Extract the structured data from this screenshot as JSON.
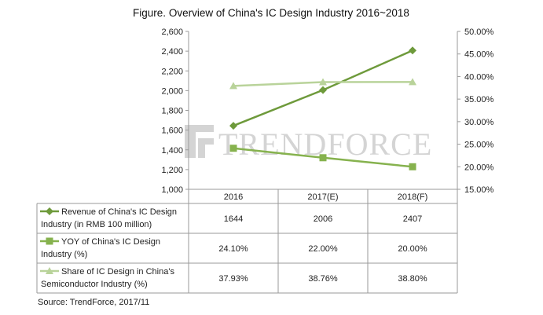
{
  "chart_data": {
    "type": "line",
    "title": "Figure. Overview of China's IC Design Industry 2016~2018",
    "categories": [
      "2016",
      "2017(E)",
      "2018(F)"
    ],
    "y_left": {
      "ticks": [
        "1,000",
        "1,200",
        "1,400",
        "1,600",
        "1,800",
        "2,000",
        "2,200",
        "2,400",
        "2,600"
      ],
      "min": 1000,
      "max": 2600
    },
    "y_right": {
      "ticks": [
        "15.00%",
        "20.00%",
        "25.00%",
        "30.00%",
        "35.00%",
        "40.00%",
        "45.00%",
        "50.00%"
      ],
      "min": 15,
      "max": 50
    },
    "grid": false,
    "series": [
      {
        "name": "Revenue of China's IC Design Industry  (in RMB 100 million)",
        "name_lines": [
          "Revenue of China's IC Design",
          "Industry  (in RMB 100 million)"
        ],
        "axis": "left",
        "marker": "diamond",
        "color": "#6e9a3b",
        "values": [
          1644,
          2006,
          2407
        ],
        "labels": [
          "1644",
          "2006",
          "2407"
        ]
      },
      {
        "name": "YOY of China's IC Design Industry (%)",
        "name_lines": [
          "YOY of China's IC Design",
          "Industry (%)"
        ],
        "axis": "right",
        "marker": "square",
        "color": "#86b24e",
        "values": [
          24.1,
          22.0,
          20.0
        ],
        "labels": [
          "24.10%",
          "22.00%",
          "20.00%"
        ]
      },
      {
        "name": "Share of IC Design in China's Semiconductor Industry (%)",
        "name_lines": [
          "Share of IC Design in China's",
          "Semiconductor Industry (%)"
        ],
        "axis": "right",
        "marker": "triangle",
        "color": "#b9d39a",
        "values": [
          37.93,
          38.76,
          38.8
        ],
        "labels": [
          "37.93%",
          "38.76%",
          "38.80%"
        ]
      }
    ]
  },
  "source": "Source: TrendForce, 2017/11",
  "watermark": "TRENDFORCE"
}
